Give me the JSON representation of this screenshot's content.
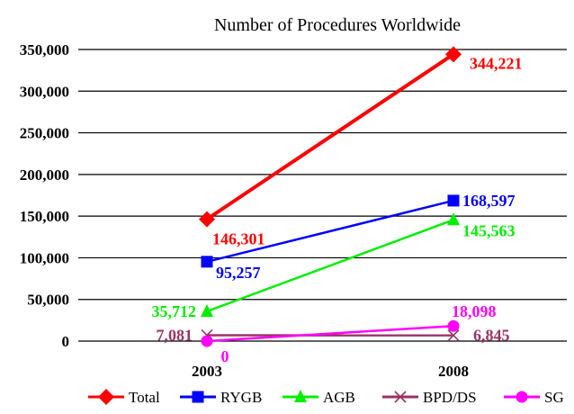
{
  "chart_data": {
    "type": "line",
    "title": "Number of Procedures Worldwide",
    "xlabel": "",
    "ylabel": "",
    "categories": [
      "2003",
      "2008"
    ],
    "ylim": [
      0,
      350000
    ],
    "yticks": [
      0,
      50000,
      100000,
      150000,
      200000,
      250000,
      300000,
      350000
    ],
    "ytick_labels": [
      "0",
      "50,000",
      "100,000",
      "150,000",
      "200,000",
      "250,000",
      "300,000",
      "350,000"
    ],
    "grid": "horizontal",
    "legend_position": "bottom",
    "series": [
      {
        "name": "Total",
        "values": [
          146301,
          344221
        ],
        "labels": [
          "146,301",
          "344,221"
        ],
        "color": "#ff0000",
        "marker": "diamond"
      },
      {
        "name": "RYGB",
        "values": [
          95257,
          168597
        ],
        "labels": [
          "95,257",
          "168,597"
        ],
        "color": "#0000ff",
        "marker": "square"
      },
      {
        "name": "AGB",
        "values": [
          35712,
          145563
        ],
        "labels": [
          "35,712",
          "145,563"
        ],
        "color": "#00ee00",
        "marker": "triangle"
      },
      {
        "name": "BPD/DS",
        "values": [
          7081,
          6845
        ],
        "labels": [
          "7,081",
          "6,845"
        ],
        "color": "#993366",
        "marker": "x"
      },
      {
        "name": "SG",
        "values": [
          0,
          18098
        ],
        "labels": [
          "0",
          "18,098"
        ],
        "color": "#ff00ff",
        "marker": "circle"
      }
    ]
  }
}
